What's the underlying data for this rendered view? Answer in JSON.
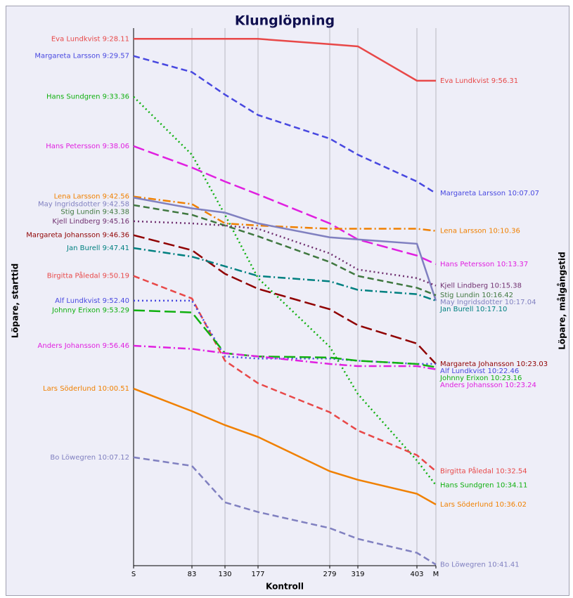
{
  "chart_data": {
    "type": "line",
    "title": "Klunglöpning",
    "x_label": "Kontroll",
    "y_label": "Löpare, starttid",
    "y2_label": "Löpare, målgångstid",
    "x": [
      0,
      83,
      130,
      177,
      279,
      319,
      403,
      430
    ],
    "xlim": [
      0,
      430
    ],
    "xticks": [
      {
        "value": 0,
        "label": "S"
      },
      83,
      130,
      177,
      279,
      319,
      403,
      {
        "value": 430,
        "label": "M"
      }
    ],
    "ylim": [
      -1,
      49.1
    ],
    "y_reversed": true,
    "grid": true,
    "series": [
      {
        "name": "Eva Lundkvist",
        "start": "9:28.11",
        "finish": "9:56.31",
        "color": "#e84848",
        "dash": "solid",
        "values": [
          0,
          0,
          0,
          0,
          0.5,
          0.7,
          3.9,
          3.9
        ]
      },
      {
        "name": "Margareta Larsson",
        "start": "9:29.57",
        "finish": "10:07.07",
        "color": "#4848e0",
        "dash": "dashed",
        "values": [
          1.6,
          3.1,
          5.2,
          7.1,
          9.3,
          10.8,
          13.3,
          14.4
        ]
      },
      {
        "name": "Hans Sundgren",
        "start": "9:33.36",
        "finish": "10:34.11",
        "color": "#10b010",
        "dash": "dotted",
        "values": [
          5.4,
          10.8,
          16.4,
          22.3,
          28.7,
          33.1,
          39.3,
          41.6
        ]
      },
      {
        "name": "Hans Petersson",
        "start": "9:38.06",
        "finish": "10:13.37",
        "color": "#e020e0",
        "dash": "longdash",
        "values": [
          10.0,
          12.0,
          13.3,
          14.5,
          17.2,
          18.7,
          20.2,
          21.0
        ]
      },
      {
        "name": "Lena Larsson",
        "start": "9:42.56",
        "finish": "10:10.36",
        "color": "#f08000",
        "dash": "dashdot",
        "values": [
          14.7,
          15.4,
          17.2,
          17.4,
          17.7,
          17.7,
          17.7,
          17.9
        ]
      },
      {
        "name": "May Ingridsdotter",
        "start": "9:42.58",
        "finish": "10:17.04",
        "color": "#8080c0",
        "dash": "solid",
        "values": [
          14.8,
          15.8,
          16.2,
          17.2,
          18.5,
          18.7,
          19.1,
          24.4
        ]
      },
      {
        "name": "Stig Lundin",
        "start": "9:43.38",
        "finish": "10:16.42",
        "color": "#407840",
        "dash": "dashed",
        "values": [
          15.5,
          16.4,
          17.4,
          18.4,
          20.8,
          22.1,
          23.2,
          23.9
        ]
      },
      {
        "name": "Kjell Lindberg",
        "start": "9:45.16",
        "finish": "10:15.38",
        "color": "#703070",
        "dash": "dotted",
        "values": [
          17.0,
          17.2,
          17.4,
          17.7,
          20.0,
          21.5,
          22.3,
          23.0
        ]
      },
      {
        "name": "Margareta Johansson",
        "start": "9:46.36",
        "finish": "10:23.03",
        "color": "#900000",
        "dash": "longdash",
        "values": [
          18.3,
          19.7,
          21.9,
          23.3,
          25.2,
          26.7,
          28.4,
          30.3
        ]
      },
      {
        "name": "Jan Burell",
        "start": "9:47.41",
        "finish": "10:17.10",
        "color": "#008080",
        "dash": "dashdot",
        "values": [
          19.5,
          20.3,
          21.2,
          22.1,
          22.6,
          23.4,
          23.8,
          24.4
        ]
      },
      {
        "name": "Birgitta Påledal",
        "start": "9:50.19",
        "finish": "10:32.54",
        "color": "#e84848",
        "dash": "dashed",
        "values": [
          22.1,
          24.2,
          30.0,
          32.1,
          34.8,
          36.5,
          38.8,
          40.3
        ]
      },
      {
        "name": "Alf Lundkvist",
        "start": "9:52.40",
        "finish": "10:22.46",
        "color": "#4848e0",
        "dash": "dotted",
        "values": [
          24.4,
          24.4,
          29.6,
          29.8,
          29.8,
          30.0,
          30.3,
          30.3
        ]
      },
      {
        "name": "Johnny Erixon",
        "start": "9:53.29",
        "finish": "10:23.16",
        "color": "#10b010",
        "dash": "longdash",
        "values": [
          25.3,
          25.5,
          29.3,
          29.6,
          29.7,
          30.0,
          30.3,
          30.6
        ]
      },
      {
        "name": "Anders Johansson",
        "start": "9:56.46",
        "finish": "10:23.24",
        "color": "#e020e0",
        "dash": "dashdot",
        "values": [
          28.6,
          28.9,
          29.3,
          29.6,
          30.3,
          30.5,
          30.5,
          30.8
        ]
      },
      {
        "name": "Lars Söderlund",
        "start": "10:00.51",
        "finish": "10:36.02",
        "color": "#f08000",
        "dash": "solid",
        "values": [
          32.6,
          34.7,
          36.0,
          37.1,
          40.3,
          41.1,
          42.4,
          43.4
        ]
      },
      {
        "name": "Bo Löwegren",
        "start": "10:07.12",
        "finish": "10:41.41",
        "color": "#8080c0",
        "dash": "dashed",
        "values": [
          39.0,
          39.8,
          43.2,
          44.1,
          45.6,
          46.6,
          47.9,
          49.0
        ]
      }
    ]
  }
}
